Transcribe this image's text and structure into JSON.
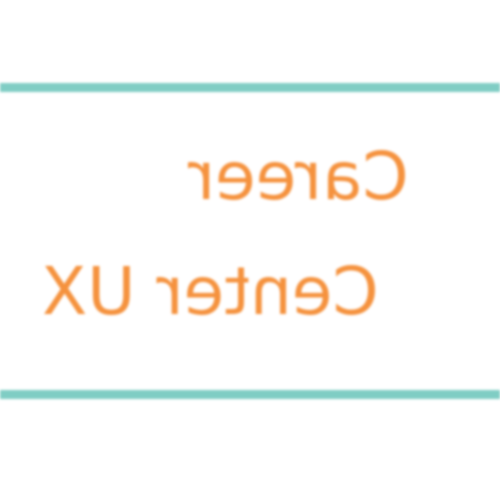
{
  "colors": {
    "rule": "#7fcdc4",
    "text": "#f5923e"
  },
  "banner": {
    "line1": "Career",
    "line2": "Center UX"
  }
}
